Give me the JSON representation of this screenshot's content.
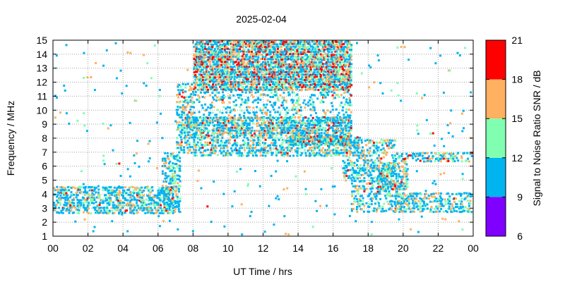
{
  "chart_data": {
    "type": "heatmap",
    "title": "2025-02-04",
    "xlabel": "UT Time / hrs",
    "ylabel": "Frequency / MHz",
    "colorbar_label": "Signal to Noise Ratio SNR / dB",
    "xlim": [
      0,
      24
    ],
    "ylim": [
      1,
      15
    ],
    "x_ticks": [
      "00",
      "02",
      "04",
      "06",
      "08",
      "10",
      "12",
      "14",
      "16",
      "18",
      "20",
      "22",
      "00"
    ],
    "y_ticks": [
      "1",
      "2",
      "3",
      "4",
      "5",
      "6",
      "7",
      "8",
      "9",
      "10",
      "11",
      "12",
      "13",
      "14",
      "15"
    ],
    "colorbar_ticks": [
      "6",
      "9",
      "12",
      "15",
      "18",
      "21"
    ],
    "colorbar_bins": [
      {
        "from": 6,
        "to": 9,
        "color": "#7f00ff"
      },
      {
        "from": 9,
        "to": 12,
        "color": "#00b4f0"
      },
      {
        "from": 12,
        "to": 15,
        "color": "#80ffb0"
      },
      {
        "from": 15,
        "to": 18,
        "color": "#ffb060"
      },
      {
        "from": 18,
        "to": 21,
        "color": "#ff0000"
      }
    ],
    "grid": true,
    "bands": [
      {
        "t0": 0.0,
        "t1": 6.8,
        "f0": 2.7,
        "f1": 4.6,
        "density": 0.55,
        "hot": 0.05
      },
      {
        "t0": 6.2,
        "t1": 7.2,
        "f0": 2.8,
        "f1": 7.0,
        "density": 0.45,
        "hot": 0.05
      },
      {
        "t0": 7.0,
        "t1": 8.0,
        "f0": 7.0,
        "f1": 12.0,
        "density": 0.4,
        "hot": 0.05
      },
      {
        "t0": 7.5,
        "t1": 8.2,
        "f0": 8.8,
        "f1": 9.6,
        "density": 0.8,
        "hot": 0.15
      },
      {
        "t0": 8.0,
        "t1": 17.0,
        "f0": 11.5,
        "f1": 15.0,
        "density": 0.8,
        "hot": 0.45
      },
      {
        "t0": 8.0,
        "t1": 17.0,
        "f0": 9.5,
        "f1": 11.5,
        "density": 0.22,
        "hot": 0.05
      },
      {
        "t0": 8.0,
        "t1": 17.0,
        "f0": 8.4,
        "f1": 9.6,
        "density": 0.7,
        "hot": 0.15
      },
      {
        "t0": 8.0,
        "t1": 17.5,
        "f0": 6.8,
        "f1": 8.4,
        "density": 0.45,
        "hot": 0.08
      },
      {
        "t0": 13.5,
        "t1": 17.0,
        "f0": 7.6,
        "f1": 8.2,
        "density": 0.85,
        "hot": 0.35
      },
      {
        "t0": 16.5,
        "t1": 19.5,
        "f0": 5.0,
        "f1": 8.0,
        "density": 0.4,
        "hot": 0.05
      },
      {
        "t0": 17.0,
        "t1": 20.0,
        "f0": 2.8,
        "f1": 5.0,
        "density": 0.35,
        "hot": 0.05
      },
      {
        "t0": 18.5,
        "t1": 20.2,
        "f0": 4.4,
        "f1": 6.2,
        "density": 0.55,
        "hot": 0.15
      },
      {
        "t0": 19.5,
        "t1": 24.0,
        "f0": 2.8,
        "f1": 4.2,
        "density": 0.45,
        "hot": 0.05
      },
      {
        "t0": 19.5,
        "t1": 24.0,
        "f0": 6.4,
        "f1": 7.0,
        "density": 0.4,
        "hot": 0.2
      },
      {
        "t0": 0.0,
        "t1": 24.0,
        "f0": 1.0,
        "f1": 15.0,
        "density": 0.012,
        "hot": 0.05
      }
    ]
  }
}
